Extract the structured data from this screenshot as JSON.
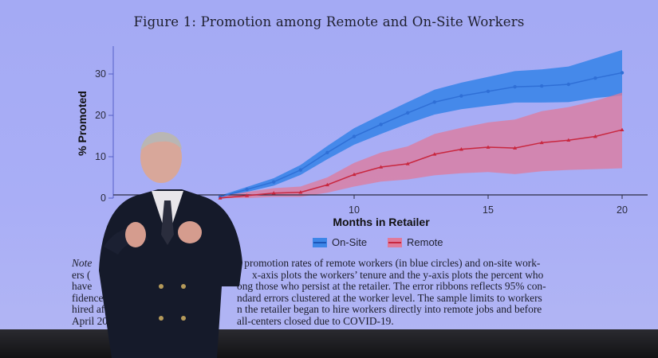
{
  "slide": {
    "title": "Figure 1:  Promotion among Remote and On-Site Workers",
    "note_lines": [
      {
        "left": "Note",
        "right": "e promotion rates of remote workers (in blue circles) and on-site work-"
      },
      {
        "left": "ers (",
        "right": "x-axis plots the workers’ tenure and the y-axis plots the percent who"
      },
      {
        "left": "have",
        "right": "ong those who persist at the retailer. The error ribbons reflects 95% con-"
      },
      {
        "left": "fidence i",
        "right": "ndard errors clustered at the worker level. The sample limits to workers"
      },
      {
        "left": "hired aft",
        "right": "n the retailer began to hire workers directly into remote jobs and before"
      },
      {
        "left": "April 202",
        "right": "all-centers closed due to COVID-19."
      }
    ]
  },
  "chart_data": {
    "type": "line",
    "title": "Figure 1:  Promotion among Remote and On-Site Workers",
    "xlabel": "Months in Retailer",
    "ylabel": "% Promoted",
    "xlim": [
      1,
      20.5
    ],
    "ylim": [
      0,
      37
    ],
    "xticks": [
      10,
      15,
      20
    ],
    "yticks": [
      0,
      10,
      20,
      30
    ],
    "grid": false,
    "legend_position": "bottom",
    "x": [
      5,
      6,
      7,
      8,
      9,
      10,
      11,
      12,
      13,
      14,
      15,
      16,
      17,
      18,
      19,
      20
    ],
    "series": [
      {
        "name": "On-Site",
        "color": "#2f6fd6",
        "band_color": "#3d86e8",
        "values": [
          0.3,
          2.1,
          3.9,
          6.8,
          11.0,
          14.9,
          17.8,
          20.6,
          23.2,
          24.7,
          25.8,
          26.9,
          27.1,
          27.5,
          29.0,
          30.3
        ],
        "lower": [
          0,
          1.5,
          3.0,
          5.6,
          9.4,
          12.9,
          15.5,
          18.0,
          20.2,
          21.5,
          22.3,
          23.1,
          23.1,
          23.2,
          24.2,
          24.8
        ],
        "upper": [
          0.6,
          2.7,
          4.8,
          8.0,
          12.6,
          16.9,
          20.1,
          23.2,
          26.2,
          27.9,
          29.3,
          30.7,
          31.1,
          31.8,
          33.8,
          35.8
        ]
      },
      {
        "name": "Remote",
        "color": "#c8273f",
        "band_color": "#e07a9a",
        "values": [
          0,
          0.6,
          1.2,
          1.4,
          3.2,
          5.7,
          7.5,
          8.3,
          10.6,
          11.8,
          12.3,
          12.1,
          13.4,
          14.0,
          14.9,
          16.5
        ],
        "lower": [
          0,
          0,
          0.3,
          0.3,
          1.3,
          2.8,
          4.0,
          4.5,
          5.5,
          6.0,
          6.3,
          5.8,
          6.5,
          6.8,
          7.0,
          7.2
        ],
        "upper": [
          0.5,
          1.5,
          2.4,
          2.8,
          5.0,
          8.5,
          11.0,
          12.5,
          15.5,
          17.0,
          18.3,
          19.0,
          21.0,
          22.0,
          23.5,
          25.5
        ]
      }
    ]
  }
}
